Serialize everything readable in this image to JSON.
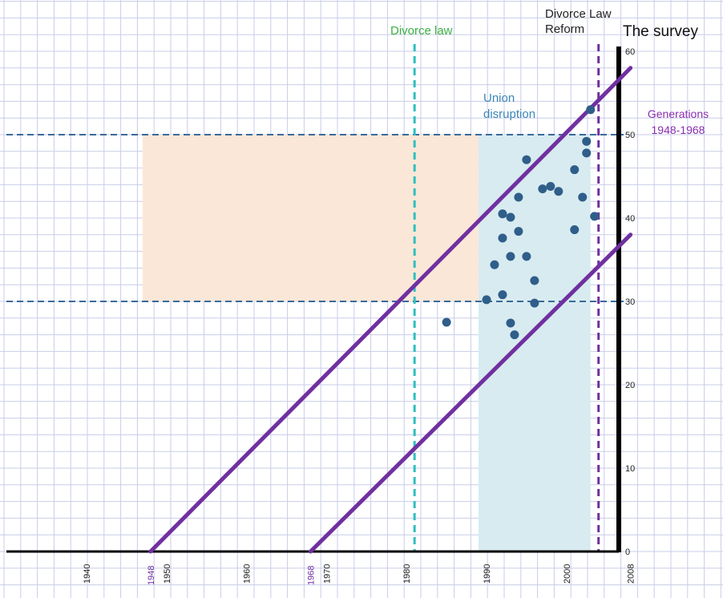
{
  "chart_data": {
    "type": "scatter",
    "title": "",
    "x_axis": {
      "range": [
        1930,
        2008
      ],
      "ticks": [
        1940,
        1950,
        1960,
        1970,
        1980,
        1990,
        2000,
        2008
      ],
      "highlighted_ticks": [
        1948,
        1968
      ]
    },
    "y_axis": {
      "range": [
        0,
        60
      ],
      "ticks": [
        0,
        10,
        20,
        30,
        40,
        50,
        60
      ],
      "position": "right at 2008"
    },
    "regions": [
      {
        "x": [
          1947,
          1989
        ],
        "y": [
          30,
          50
        ],
        "color": "#fbe7d8"
      },
      {
        "x": [
          1989,
          2003
        ],
        "y": [
          0,
          50
        ],
        "color": "#d8ebf0",
        "label": "Union\ndisruption"
      }
    ],
    "reference_lines": [
      {
        "orientation": "horizontal",
        "y": 30,
        "style": "dashed",
        "color": "#3a6b9a"
      },
      {
        "orientation": "horizontal",
        "y": 50,
        "style": "dashed",
        "color": "#3a6b9a"
      },
      {
        "orientation": "vertical",
        "x": 1981,
        "style": "dashed",
        "color": "#2fbfbf",
        "label": "Divorce law",
        "label_color": "#3cb043"
      },
      {
        "orientation": "vertical",
        "x": 2004,
        "style": "dashed",
        "color": "#7030a0",
        "label": "Divorce Law\nReform",
        "label_color": "#222222"
      }
    ],
    "cohort_lines": [
      {
        "from": [
          1948,
          0
        ],
        "to": [
          2008,
          58
        ]
      },
      {
        "from": [
          1968,
          0
        ],
        "to": [
          2008,
          38
        ]
      }
    ],
    "cohort_label": "Generations\n1948-1968",
    "survey_label": "The survey",
    "points": [
      [
        1985,
        27.5
      ],
      [
        1990,
        30.2
      ],
      [
        1991,
        34.4
      ],
      [
        1992,
        30.8
      ],
      [
        1992,
        40.5
      ],
      [
        1992,
        37.6
      ],
      [
        1993,
        27.4
      ],
      [
        1993,
        35.4
      ],
      [
        1993,
        40.1
      ],
      [
        1993.5,
        26
      ],
      [
        1994,
        38.4
      ],
      [
        1994,
        42.5
      ],
      [
        1995,
        47
      ],
      [
        1995,
        35.4
      ],
      [
        1996,
        32.5
      ],
      [
        1996,
        29.8
      ],
      [
        1997,
        43.5
      ],
      [
        1998,
        43.8
      ],
      [
        1999,
        43.2
      ],
      [
        2001,
        45.8
      ],
      [
        2001,
        38.6
      ],
      [
        2002,
        42.5
      ],
      [
        2002.5,
        49.2
      ],
      [
        2002.5,
        47.8
      ],
      [
        2003,
        53
      ],
      [
        2003.5,
        40.2
      ]
    ],
    "series_color": "#2f5e8a",
    "line_color": "#7030a0",
    "grid": true
  }
}
